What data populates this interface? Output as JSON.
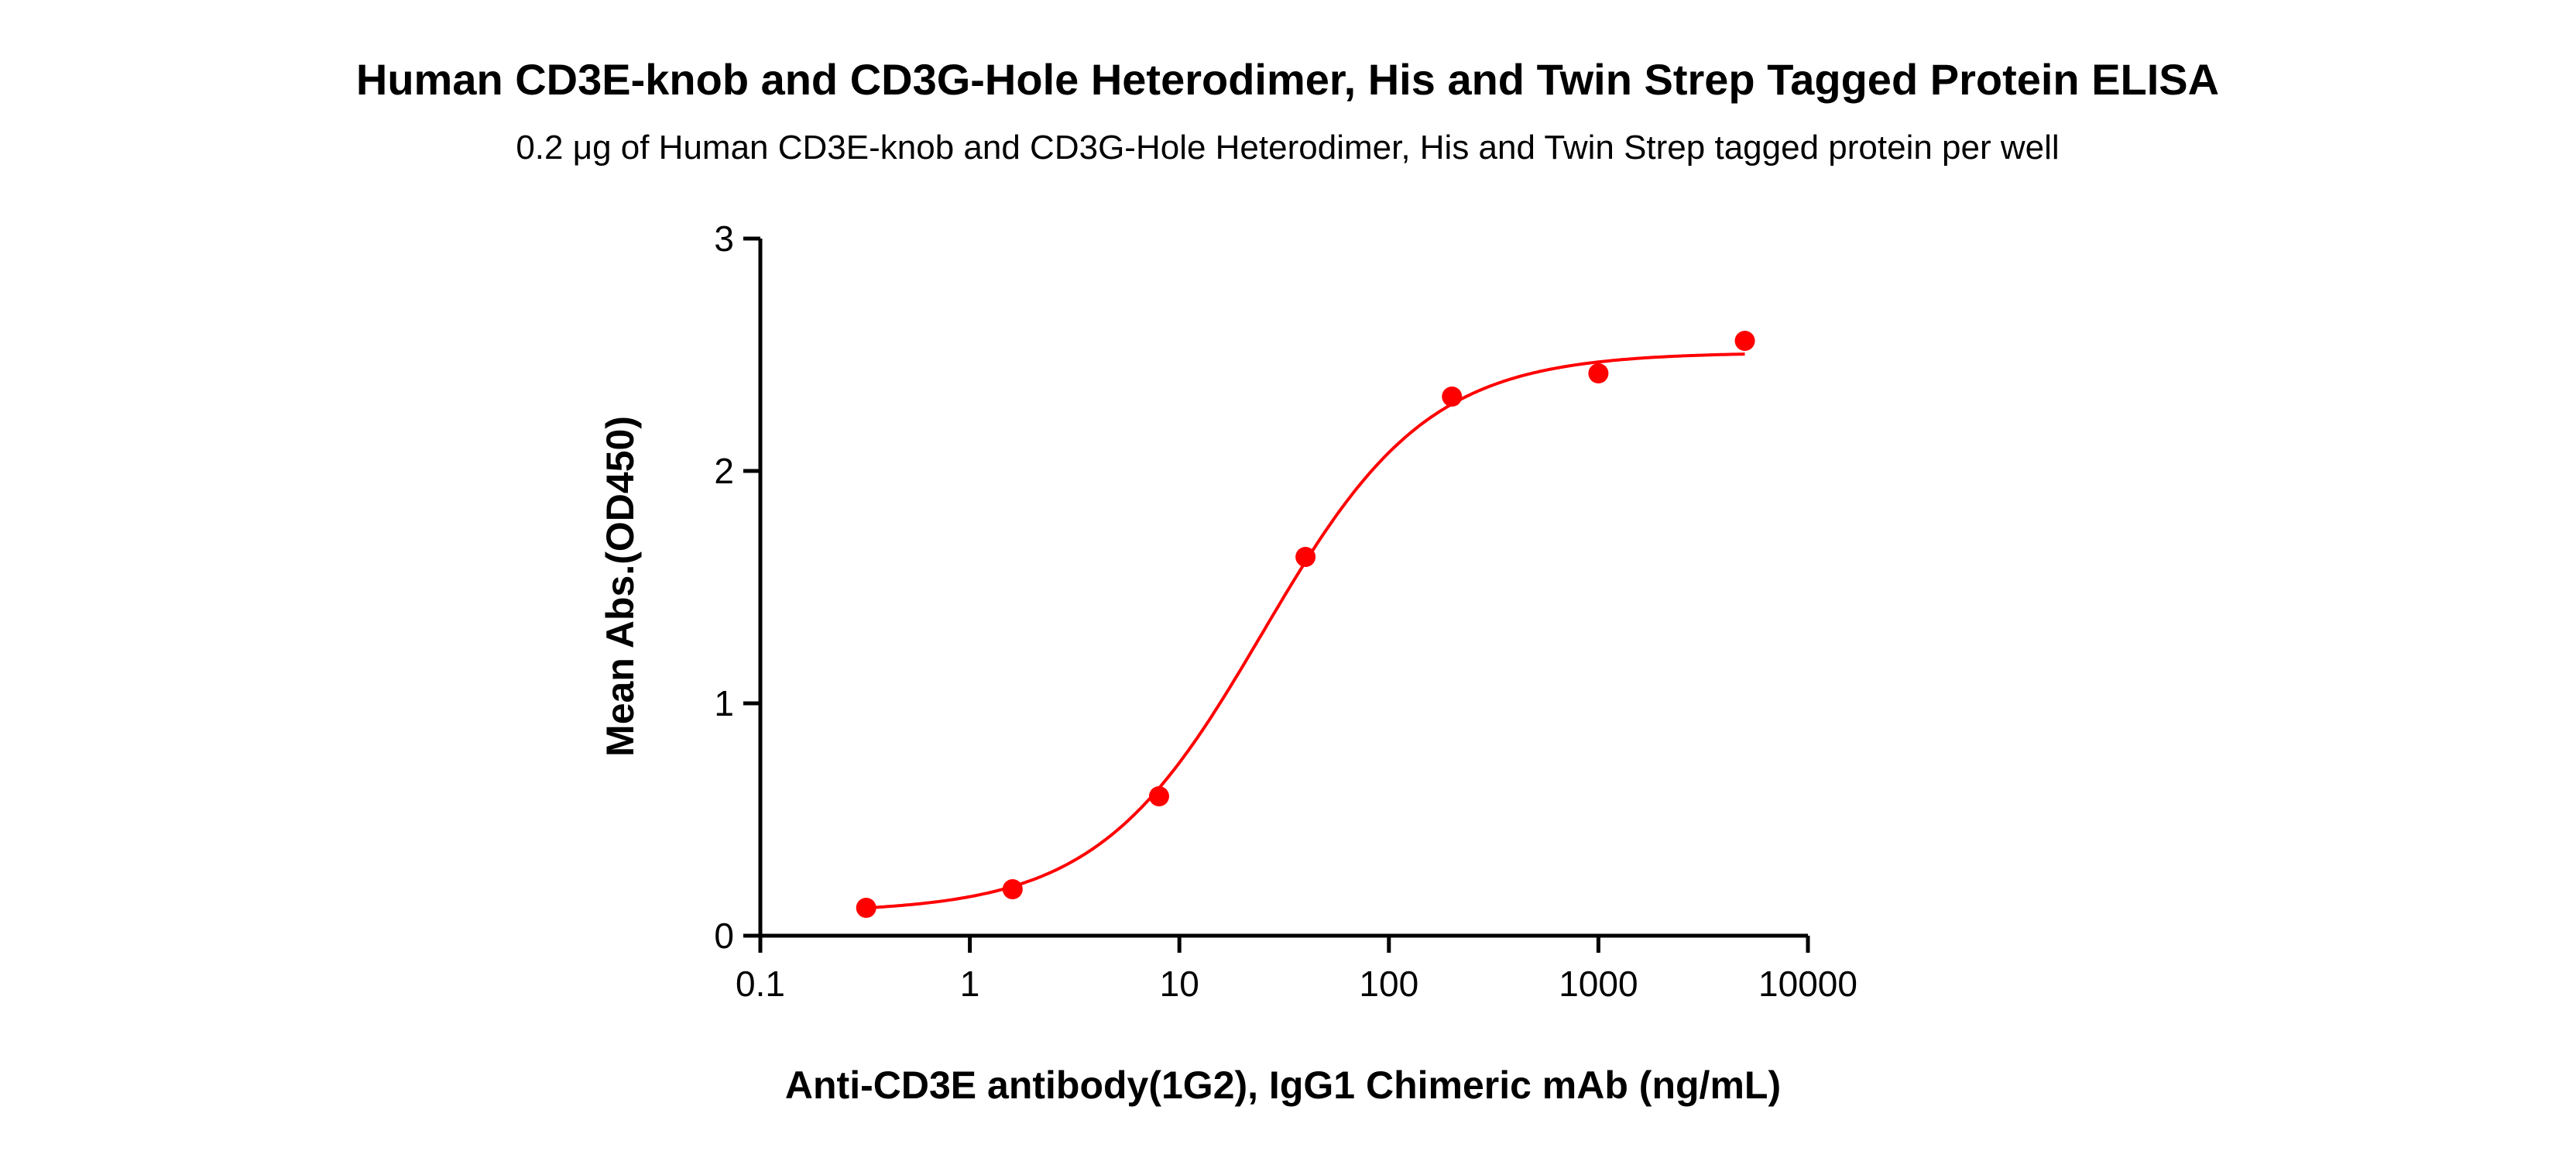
{
  "chart_data": {
    "type": "scatter",
    "title": "Human CD3E-knob and CD3G-Hole Heterodimer, His and Twin Strep Tagged Protein ELISA",
    "subtitle": "0.2 μg of Human CD3E-knob and CD3G-Hole Heterodimer, His and Twin Strep tagged protein per well",
    "xlabel": "Anti-CD3E antibody(1G2), IgG1 Chimeric mAb (ng/mL)",
    "ylabel": "Mean Abs.(OD450)",
    "xscale": "log",
    "xlim": [
      0.1,
      10000
    ],
    "ylim": [
      0,
      3
    ],
    "xticks": [
      "0.1",
      "1",
      "10",
      "100",
      "1000",
      "10000"
    ],
    "yticks": [
      "0",
      "1",
      "2",
      "3"
    ],
    "grid": false,
    "color": "#ff0000",
    "x": [
      0.32,
      1.6,
      8,
      40,
      200,
      1000,
      5000
    ],
    "y": [
      0.12,
      0.2,
      0.6,
      1.63,
      2.32,
      2.42,
      2.56
    ],
    "fit": {
      "model": "4PL",
      "bottom": 0.1,
      "top": 2.51,
      "ec50": 25,
      "hill": 1.1
    }
  }
}
